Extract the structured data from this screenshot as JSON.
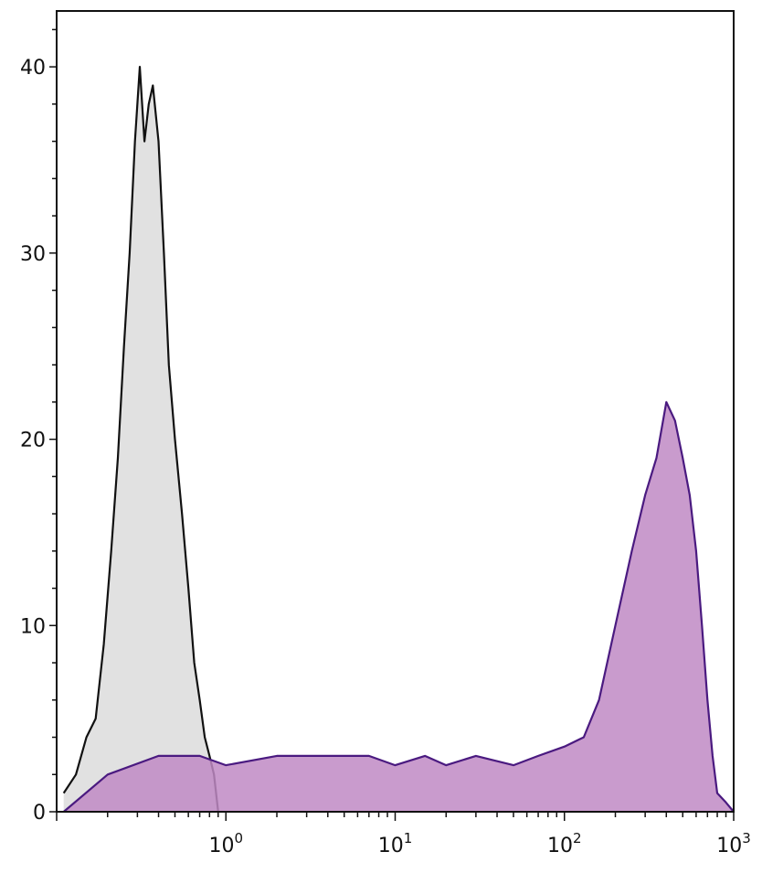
{
  "chart_data": {
    "type": "area",
    "title": "",
    "xlabel": "",
    "ylabel": "",
    "x_scale": "log",
    "xlim": [
      0.1,
      1000
    ],
    "ylim": [
      0,
      43
    ],
    "grid": false,
    "y_ticks": [
      "0",
      "10",
      "20",
      "30",
      "40"
    ],
    "y_tick_values": [
      0,
      10,
      20,
      30,
      40
    ],
    "x_ticks": [
      {
        "value": 1,
        "base": "10",
        "exp": "0"
      },
      {
        "value": 10,
        "base": "10",
        "exp": "1"
      },
      {
        "value": 100,
        "base": "10",
        "exp": "2"
      },
      {
        "value": 1000,
        "base": "10",
        "exp": "3"
      }
    ],
    "series": [
      {
        "fill": "#e1e1e1",
        "stroke": "#111111",
        "x": [
          0.11,
          0.13,
          0.15,
          0.17,
          0.19,
          0.21,
          0.23,
          0.25,
          0.27,
          0.29,
          0.31,
          0.33,
          0.35,
          0.37,
          0.4,
          0.43,
          0.46,
          0.5,
          0.55,
          0.6,
          0.65,
          0.7,
          0.75,
          0.8,
          0.85,
          0.9
        ],
        "y": [
          1,
          2,
          4,
          5,
          9,
          14,
          19,
          25,
          30,
          36,
          40,
          36,
          38,
          39,
          36,
          30,
          24,
          20,
          16,
          12,
          8,
          6,
          4,
          3,
          2,
          0
        ]
      },
      {
        "fill": "#c08ac4",
        "stroke": "#4a1a80",
        "x": [
          0.11,
          0.2,
          0.4,
          0.7,
          1,
          2,
          3,
          5,
          7,
          10,
          15,
          20,
          30,
          50,
          70,
          100,
          130,
          160,
          200,
          250,
          300,
          350,
          400,
          450,
          500,
          550,
          600,
          650,
          700,
          750,
          800,
          900,
          1000
        ],
        "y": [
          0,
          2,
          3,
          3,
          2.5,
          3,
          3,
          3,
          3,
          2.5,
          3,
          2.5,
          3,
          2.5,
          3,
          3.5,
          4,
          6,
          10,
          14,
          17,
          19,
          22,
          21,
          19,
          17,
          14,
          10,
          6,
          3,
          1,
          0.5,
          0
        ]
      }
    ]
  }
}
